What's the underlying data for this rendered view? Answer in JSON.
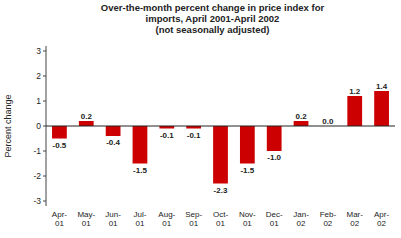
{
  "chart_data": {
    "type": "bar",
    "title": "Over-the-month percent change in price index for\nimports, April 2001-April 2002\n(not seasonally adjusted)",
    "categories": [
      "Apr-\n01",
      "May-\n01",
      "Jun-\n01",
      "Jul-\n01",
      "Aug-\n01",
      "Sep-\n01",
      "Oct-\n01",
      "Nov-\n01",
      "Dec-\n01",
      "Jan-\n02",
      "Feb-\n02",
      "Mar-\n02",
      "Apr-\n02"
    ],
    "values": [
      -0.5,
      0.2,
      -0.4,
      -1.5,
      -0.1,
      -0.1,
      -2.3,
      -1.5,
      -1.0,
      0.2,
      0.0,
      1.2,
      1.4
    ],
    "value_labels": [
      "-0.5",
      "0.2",
      "-0.4",
      "-1.5",
      "-0.1",
      "-0.1",
      "-2.3",
      "-1.5",
      "-1.0",
      "0.2",
      "0.0",
      "1.2",
      "1.4"
    ],
    "color": "#CC0000",
    "ylabel": "Percent change",
    "ylim": [
      -3.2,
      3.2
    ],
    "yticks": [
      -3,
      -2,
      -1,
      0,
      1,
      2,
      3
    ],
    "grid": false,
    "data_labels": true
  }
}
